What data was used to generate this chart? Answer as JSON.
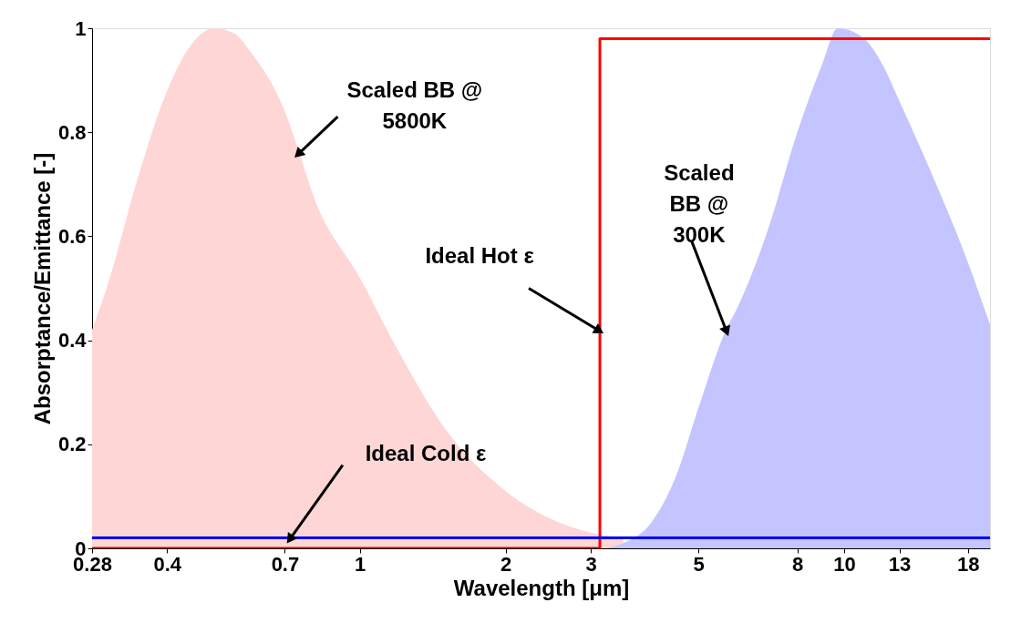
{
  "chart_data": {
    "type": "area",
    "xlabel": "Wavelength [μm]",
    "ylabel": "Absorptance/Emittance [-]",
    "log": "x",
    "xlim": [
      0.28,
      20
    ],
    "ylim": [
      0,
      1
    ],
    "xticks": [
      0.28,
      0.4,
      0.7,
      1,
      2,
      3,
      5,
      8,
      10,
      13,
      18
    ],
    "yticks": [
      0,
      0.2,
      0.4,
      0.6,
      0.8,
      1
    ],
    "grid": false,
    "series": [
      {
        "type": "area",
        "color": "#ffd6d6",
        "x": [
          0.28,
          0.3,
          0.35,
          0.4,
          0.45,
          0.5,
          0.55,
          0.6,
          0.7,
          0.75,
          0.8,
          1.0,
          1.2,
          1.5,
          2,
          2.5,
          3,
          3.5
        ],
        "values": [
          0.42,
          0.5,
          0.72,
          0.88,
          0.97,
          1.0,
          0.99,
          0.95,
          0.84,
          0.76,
          0.68,
          0.52,
          0.38,
          0.23,
          0.11,
          0.055,
          0.03,
          0.02
        ]
      },
      {
        "type": "area",
        "color": "#c4c4ff",
        "x": [
          3.2,
          3.5,
          4,
          4.5,
          5,
          5.7,
          6,
          7,
          8,
          9,
          9.7,
          11,
          12,
          13,
          15,
          18,
          20
        ],
        "values": [
          0,
          0.01,
          0.05,
          0.14,
          0.27,
          0.42,
          0.46,
          0.62,
          0.8,
          0.93,
          1.0,
          0.98,
          0.93,
          0.86,
          0.73,
          0.55,
          0.43
        ]
      },
      {
        "type": "step",
        "color": "#ff0000",
        "x": [
          0.28,
          3.13,
          20
        ],
        "values": [
          0,
          0.98,
          0.98
        ]
      },
      {
        "type": "line",
        "color": "#0000ff",
        "x": [
          0.28,
          20
        ],
        "values": [
          0.02,
          0.02
        ]
      }
    ],
    "annotations": [
      {
        "text": "Scaled BB @\n5800K",
        "x": 0.75,
        "y": 0.76
      },
      {
        "text": "Scaled\nBB @\n300K",
        "x": 5.7,
        "y": 0.42
      },
      {
        "text": "Ideal Hot ε",
        "x": 3.1,
        "y": 0.42
      },
      {
        "text": "Ideal Cold ε",
        "x": 0.72,
        "y": 0.02
      }
    ]
  }
}
